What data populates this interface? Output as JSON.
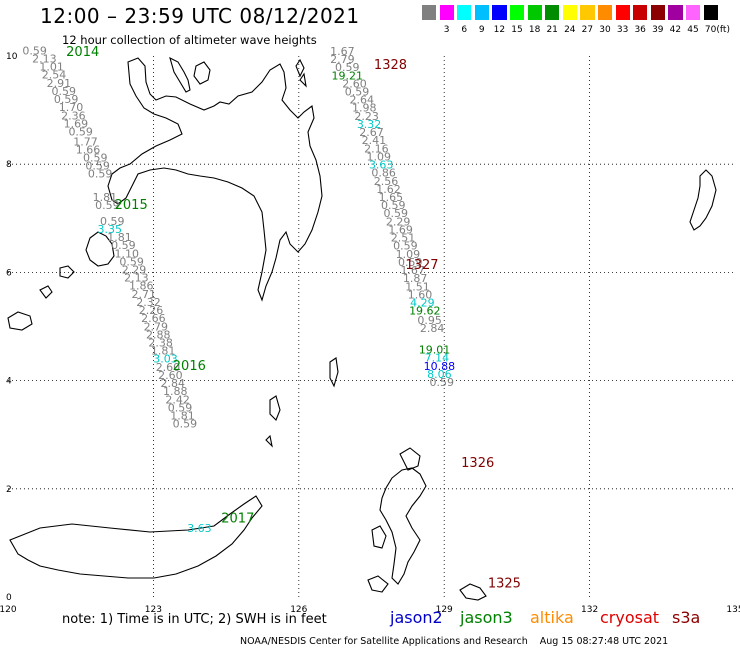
{
  "title": "12:00 – 23:59 UTC 08/12/2021",
  "subtitle": "12 hour collection of altimeter wave heights",
  "legend": {
    "unit": "(ft)",
    "items": [
      {
        "label": "",
        "color": "#808080"
      },
      {
        "label": "3",
        "color": "#ff00ff"
      },
      {
        "label": "6",
        "color": "#00ffff"
      },
      {
        "label": "9",
        "color": "#00bfff"
      },
      {
        "label": "12",
        "color": "#0000ff"
      },
      {
        "label": "15",
        "color": "#00ff00"
      },
      {
        "label": "18",
        "color": "#00c800"
      },
      {
        "label": "21",
        "color": "#008c00"
      },
      {
        "label": "24",
        "color": "#ffff00"
      },
      {
        "label": "27",
        "color": "#ffc800"
      },
      {
        "label": "30",
        "color": "#ff8c00"
      },
      {
        "label": "33",
        "color": "#ff0000"
      },
      {
        "label": "36",
        "color": "#c80000"
      },
      {
        "label": "39",
        "color": "#8b0000"
      },
      {
        "label": "42",
        "color": "#a000a0"
      },
      {
        "label": "45",
        "color": "#ff64ff"
      },
      {
        "label": "70",
        "color": "#000000"
      }
    ]
  },
  "axes": {
    "x_ticks": [
      "120",
      "123",
      "126",
      "129",
      "132",
      "135"
    ],
    "y_ticks": [
      "10",
      "8",
      "6",
      "4",
      "2",
      "0"
    ]
  },
  "passes": [
    {
      "label": "2014",
      "color": "#008000",
      "lon": 121.2,
      "lat": 10.0
    },
    {
      "label": "2015",
      "color": "#008000",
      "lon": 122.2,
      "lat": 7.17
    },
    {
      "label": "2016",
      "color": "#008000",
      "lon": 123.4,
      "lat": 4.2
    },
    {
      "label": "2017",
      "color": "#008000",
      "lon": 124.4,
      "lat": 1.38
    },
    {
      "label": "1328",
      "color": "#800000",
      "lon": 127.55,
      "lat": 9.76
    },
    {
      "label": "1327",
      "color": "#800000",
      "lon": 128.2,
      "lat": 6.06
    },
    {
      "label": "1326",
      "color": "#800000",
      "lon": 129.35,
      "lat": 2.4
    },
    {
      "label": "1325",
      "color": "#800000",
      "lon": 129.9,
      "lat": 0.18
    }
  ],
  "swh_tracks": [
    {
      "name": "track-west",
      "points": [
        {
          "lon": 120.55,
          "lat": 10.03,
          "v": "0.59",
          "c": "#808080"
        },
        {
          "lon": 120.75,
          "lat": 9.88,
          "v": "2.13",
          "c": "#808080"
        },
        {
          "lon": 120.9,
          "lat": 9.73,
          "v": "1.01",
          "c": "#808080"
        },
        {
          "lon": 120.95,
          "lat": 9.58,
          "v": "2.54",
          "c": "#808080"
        },
        {
          "lon": 121.05,
          "lat": 9.43,
          "v": "2.91",
          "c": "#808080"
        },
        {
          "lon": 121.15,
          "lat": 9.28,
          "v": "0.59",
          "c": "#808080"
        },
        {
          "lon": 121.2,
          "lat": 9.13,
          "v": "0.59",
          "c": "#808080"
        },
        {
          "lon": 121.3,
          "lat": 8.98,
          "v": "1.70",
          "c": "#808080"
        },
        {
          "lon": 121.35,
          "lat": 8.83,
          "v": "2.36",
          "c": "#808080"
        },
        {
          "lon": 121.4,
          "lat": 8.68,
          "v": "1.69",
          "c": "#808080"
        },
        {
          "lon": 121.5,
          "lat": 8.53,
          "v": "0.59",
          "c": "#808080"
        },
        {
          "lon": 121.6,
          "lat": 8.35,
          "v": "1.77",
          "c": "#808080"
        },
        {
          "lon": 121.65,
          "lat": 8.2,
          "v": "1.66",
          "c": "#808080"
        },
        {
          "lon": 121.8,
          "lat": 8.05,
          "v": "0.59",
          "c": "#808080"
        },
        {
          "lon": 121.85,
          "lat": 7.9,
          "v": "0.59",
          "c": "#808080"
        },
        {
          "lon": 121.9,
          "lat": 7.75,
          "v": "0.59",
          "c": "#808080"
        },
        {
          "lon": 122.0,
          "lat": 7.32,
          "v": "1.81",
          "c": "#808080"
        },
        {
          "lon": 122.05,
          "lat": 7.17,
          "v": "0.59",
          "c": "#808080"
        },
        {
          "lon": 122.15,
          "lat": 6.88,
          "v": "0.59",
          "c": "#808080"
        },
        {
          "lon": 122.1,
          "lat": 6.73,
          "v": "3.35",
          "c": "#00c8c8"
        },
        {
          "lon": 122.3,
          "lat": 6.58,
          "v": "1.81",
          "c": "#808080"
        },
        {
          "lon": 122.38,
          "lat": 6.43,
          "v": "0.59",
          "c": "#808080"
        },
        {
          "lon": 122.45,
          "lat": 6.28,
          "v": "1.10",
          "c": "#808080"
        },
        {
          "lon": 122.55,
          "lat": 6.13,
          "v": "0.59",
          "c": "#808080"
        },
        {
          "lon": 122.6,
          "lat": 5.98,
          "v": "2.29",
          "c": "#808080"
        },
        {
          "lon": 122.65,
          "lat": 5.83,
          "v": "2.13",
          "c": "#808080"
        },
        {
          "lon": 122.75,
          "lat": 5.68,
          "v": "1.86",
          "c": "#808080"
        },
        {
          "lon": 122.8,
          "lat": 5.53,
          "v": "2.71",
          "c": "#808080"
        },
        {
          "lon": 122.9,
          "lat": 5.38,
          "v": "2.32",
          "c": "#808080"
        },
        {
          "lon": 122.95,
          "lat": 5.23,
          "v": "2.26",
          "c": "#808080"
        },
        {
          "lon": 123.0,
          "lat": 5.08,
          "v": "2.66",
          "c": "#808080"
        },
        {
          "lon": 123.05,
          "lat": 4.93,
          "v": "2.79",
          "c": "#808080"
        },
        {
          "lon": 123.1,
          "lat": 4.78,
          "v": "2.88",
          "c": "#808080"
        },
        {
          "lon": 123.15,
          "lat": 4.63,
          "v": "2.38",
          "c": "#808080"
        },
        {
          "lon": 123.2,
          "lat": 4.48,
          "v": "1.81",
          "c": "#808080"
        },
        {
          "lon": 123.25,
          "lat": 4.33,
          "v": "3.03",
          "c": "#00c8c8"
        },
        {
          "lon": 123.3,
          "lat": 4.18,
          "v": "2.60",
          "c": "#808080"
        },
        {
          "lon": 123.35,
          "lat": 4.03,
          "v": "2.60",
          "c": "#808080"
        },
        {
          "lon": 123.4,
          "lat": 3.88,
          "v": "2.84",
          "c": "#808080"
        },
        {
          "lon": 123.45,
          "lat": 3.73,
          "v": "1.88",
          "c": "#808080"
        },
        {
          "lon": 123.5,
          "lat": 3.58,
          "v": "2.42",
          "c": "#808080"
        },
        {
          "lon": 123.55,
          "lat": 3.43,
          "v": "0.59",
          "c": "#808080"
        },
        {
          "lon": 123.6,
          "lat": 3.28,
          "v": "1.81",
          "c": "#808080"
        },
        {
          "lon": 123.65,
          "lat": 3.13,
          "v": "0.59",
          "c": "#808080"
        },
        {
          "lon": 123.95,
          "lat": 1.2,
          "v": "3.63",
          "c": "#00c8c8"
        }
      ]
    },
    {
      "name": "track-east",
      "points": [
        {
          "lon": 126.9,
          "lat": 10.02,
          "v": "1.67",
          "c": "#808080"
        },
        {
          "lon": 126.9,
          "lat": 9.87,
          "v": "2.79",
          "c": "#808080"
        },
        {
          "lon": 127.0,
          "lat": 9.72,
          "v": "0.59",
          "c": "#808080"
        },
        {
          "lon": 127.0,
          "lat": 9.57,
          "v": "19.21",
          "c": "#008000"
        },
        {
          "lon": 127.15,
          "lat": 9.42,
          "v": "2.60",
          "c": "#808080"
        },
        {
          "lon": 127.2,
          "lat": 9.27,
          "v": "0.59",
          "c": "#808080"
        },
        {
          "lon": 127.3,
          "lat": 9.12,
          "v": "2.64",
          "c": "#808080"
        },
        {
          "lon": 127.35,
          "lat": 8.97,
          "v": "1.98",
          "c": "#808080"
        },
        {
          "lon": 127.4,
          "lat": 8.82,
          "v": "2.23",
          "c": "#808080"
        },
        {
          "lon": 127.45,
          "lat": 8.67,
          "v": "3.32",
          "c": "#00c8c8"
        },
        {
          "lon": 127.5,
          "lat": 8.52,
          "v": "2.67",
          "c": "#808080"
        },
        {
          "lon": 127.55,
          "lat": 8.37,
          "v": "2.41",
          "c": "#808080"
        },
        {
          "lon": 127.6,
          "lat": 8.22,
          "v": "2.16",
          "c": "#808080"
        },
        {
          "lon": 127.65,
          "lat": 8.07,
          "v": "1.09",
          "c": "#808080"
        },
        {
          "lon": 127.7,
          "lat": 7.92,
          "v": "3.63",
          "c": "#00c8c8"
        },
        {
          "lon": 127.75,
          "lat": 7.77,
          "v": "0.86",
          "c": "#808080"
        },
        {
          "lon": 127.8,
          "lat": 7.62,
          "v": "2.56",
          "c": "#808080"
        },
        {
          "lon": 127.85,
          "lat": 7.47,
          "v": "1.62",
          "c": "#808080"
        },
        {
          "lon": 127.9,
          "lat": 7.32,
          "v": "1.65",
          "c": "#808080"
        },
        {
          "lon": 127.95,
          "lat": 7.17,
          "v": "0.59",
          "c": "#808080"
        },
        {
          "lon": 128.0,
          "lat": 7.02,
          "v": "0.59",
          "c": "#808080"
        },
        {
          "lon": 128.05,
          "lat": 6.87,
          "v": "2.29",
          "c": "#808080"
        },
        {
          "lon": 128.1,
          "lat": 6.72,
          "v": "1.69",
          "c": "#808080"
        },
        {
          "lon": 128.15,
          "lat": 6.57,
          "v": "2.51",
          "c": "#808080"
        },
        {
          "lon": 128.2,
          "lat": 6.42,
          "v": "0.59",
          "c": "#808080"
        },
        {
          "lon": 128.25,
          "lat": 6.27,
          "v": "1.09",
          "c": "#808080"
        },
        {
          "lon": 128.3,
          "lat": 6.12,
          "v": "0.59",
          "c": "#808080"
        },
        {
          "lon": 128.35,
          "lat": 5.97,
          "v": "1.67",
          "c": "#808080"
        },
        {
          "lon": 128.4,
          "lat": 5.82,
          "v": "1.87",
          "c": "#808080"
        },
        {
          "lon": 128.45,
          "lat": 5.67,
          "v": "1.51",
          "c": "#808080"
        },
        {
          "lon": 128.5,
          "lat": 5.52,
          "v": "1.60",
          "c": "#808080"
        },
        {
          "lon": 128.55,
          "lat": 5.37,
          "v": "4.29",
          "c": "#00c8c8"
        },
        {
          "lon": 128.6,
          "lat": 5.22,
          "v": "19.62",
          "c": "#008000"
        },
        {
          "lon": 128.7,
          "lat": 5.05,
          "v": "0.95",
          "c": "#808080"
        },
        {
          "lon": 128.75,
          "lat": 4.9,
          "v": "2.84",
          "c": "#808080"
        },
        {
          "lon": 128.8,
          "lat": 4.5,
          "v": "19.01",
          "c": "#008000"
        },
        {
          "lon": 128.85,
          "lat": 4.35,
          "v": "7.14",
          "c": "#00c8c8"
        },
        {
          "lon": 128.9,
          "lat": 4.2,
          "v": "10.88",
          "c": "#0000ff"
        },
        {
          "lon": 128.9,
          "lat": 4.05,
          "v": "8.06",
          "c": "#00c8c8"
        },
        {
          "lon": 128.95,
          "lat": 3.9,
          "v": "0.59",
          "c": "#808080"
        }
      ]
    }
  ],
  "note": "note:  1) Time is in UTC;  2) SWH is in feet",
  "satellites": [
    {
      "name": "jason2",
      "color": "#0000c8"
    },
    {
      "name": "jason3",
      "color": "#008000"
    },
    {
      "name": "altika",
      "color": "#ff8c00"
    },
    {
      "name": "cryosat",
      "color": "#e00000"
    },
    {
      "name": "s3a",
      "color": "#8b0000"
    }
  ],
  "credit": "NOAA/NESDIS Center for Satellite Applications and Research    Aug 15 08:27:48 UTC 2021"
}
